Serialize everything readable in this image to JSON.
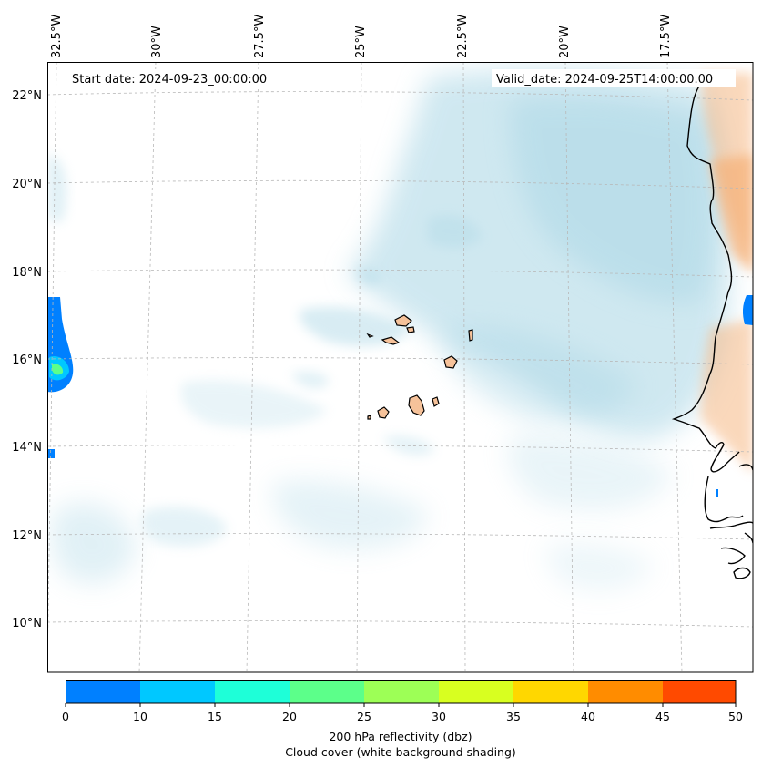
{
  "map": {
    "annotations": {
      "start_date": "Start date: 2024-09-23_00:00:00",
      "valid_date": "Valid_date: 2024-09-25T14:00:00.00"
    },
    "lon_labels": [
      "32.5°W",
      "30°W",
      "27.5°W",
      "25°W",
      "22.5°W",
      "20°W",
      "17.5°W"
    ],
    "lat_labels": [
      "22°N",
      "20°N",
      "18°N",
      "16°N",
      "14°N",
      "12°N",
      "10°N"
    ],
    "colors": {
      "cloud": "#a9d6e5",
      "land_shading": "#f6b27a",
      "coastline": "#000000",
      "gridline": "#b0b0b0"
    }
  },
  "colorbar": {
    "tick_labels": [
      "0",
      "10",
      "15",
      "20",
      "25",
      "30",
      "35",
      "40",
      "45",
      "50"
    ],
    "colors": [
      "#0080ff",
      "#00c8ff",
      "#1effd8",
      "#5cff8a",
      "#9dff56",
      "#d8ff20",
      "#ffd700",
      "#ff8c00",
      "#ff4a00"
    ],
    "label_line1": "200 hPa reflectivity (dbz)",
    "label_line2": "Cloud cover (white background shading)"
  }
}
